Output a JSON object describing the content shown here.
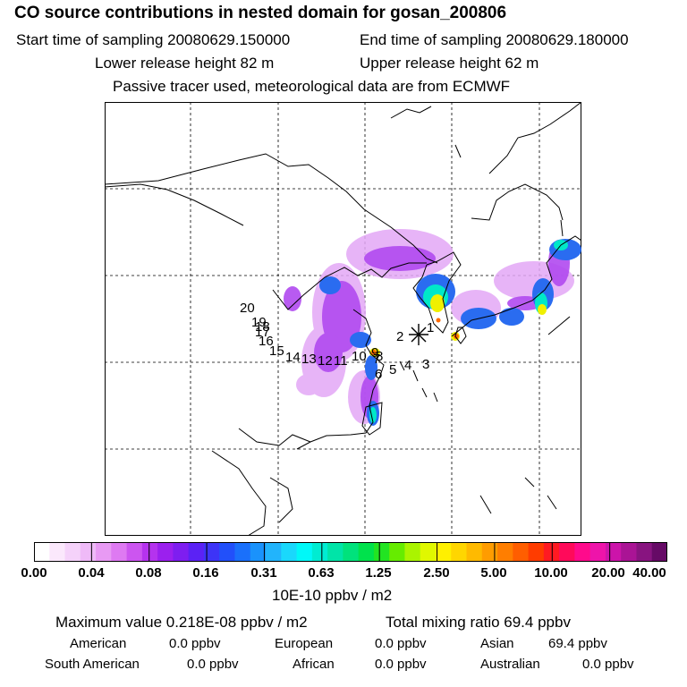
{
  "header": {
    "title": "CO  source contributions in nested domain for gosan_200806",
    "start_time": "Start time of sampling 20080629.150000",
    "end_time": "End time of sampling 20080629.180000",
    "lower_release": "Lower release height   82 m",
    "upper_release": "Upper release height   62 m",
    "tracer_note": "Passive tracer used, meteorological data are from ECMWF"
  },
  "map": {
    "receptor_symbol": "*",
    "trajectory_labels": [
      "1",
      "2",
      "3",
      "4",
      "5",
      "6",
      "7",
      "8",
      "9",
      "10",
      "11",
      "12",
      "13",
      "14",
      "15",
      "16",
      "17",
      "18",
      "19",
      "20"
    ],
    "colors": {
      "coast": "#000000",
      "grid": "#000000",
      "emission_low": "#d69cf0",
      "emission_mid": "#2a6cf0",
      "emission_high": "#ffdd00"
    }
  },
  "colorbar": {
    "tick_labels": [
      "0.00",
      "0.04",
      "0.08",
      "0.16",
      "0.31",
      "0.63",
      "1.25",
      "2.50",
      "5.00",
      "10.00",
      "20.00",
      "40.00"
    ],
    "colors": [
      "#ffffff",
      "#fbe8fc",
      "#f5d2fa",
      "#efbaf8",
      "#e89af4",
      "#de7af2",
      "#cc55f0",
      "#b533ee",
      "#9b20ee",
      "#7e1ef0",
      "#5b22f5",
      "#3d34f7",
      "#2250fa",
      "#1a70fb",
      "#1a92fc",
      "#22b4fc",
      "#1ad8fc",
      "#00f8f8",
      "#00ecd2",
      "#00e4a8",
      "#00e27c",
      "#00e24c",
      "#22e422",
      "#66ec00",
      "#aaf400",
      "#e0f800",
      "#fff000",
      "#ffd600",
      "#ffba00",
      "#ff9c00",
      "#ff7e00",
      "#ff5e00",
      "#ff3c00",
      "#ff1a22",
      "#ff0a5a",
      "#ff0a8c",
      "#ee14aa",
      "#cc14aa",
      "#aa1495",
      "#881480",
      "#660a66"
    ],
    "units": "10E-10 ppbv / m2"
  },
  "summary": {
    "max_value": "Maximum value  0.218E-08 ppbv / m2",
    "total_mixing": "Total mixing ratio       69.4 ppbv",
    "regions": [
      {
        "name": "American",
        "value": "0.0 ppbv"
      },
      {
        "name": "European",
        "value": "0.0 ppbv"
      },
      {
        "name": "Asian",
        "value": "69.4 ppbv"
      },
      {
        "name": "South American",
        "value": "0.0 ppbv"
      },
      {
        "name": "African",
        "value": "0.0 ppbv"
      },
      {
        "name": "Australian",
        "value": "0.0 ppbv"
      }
    ]
  }
}
